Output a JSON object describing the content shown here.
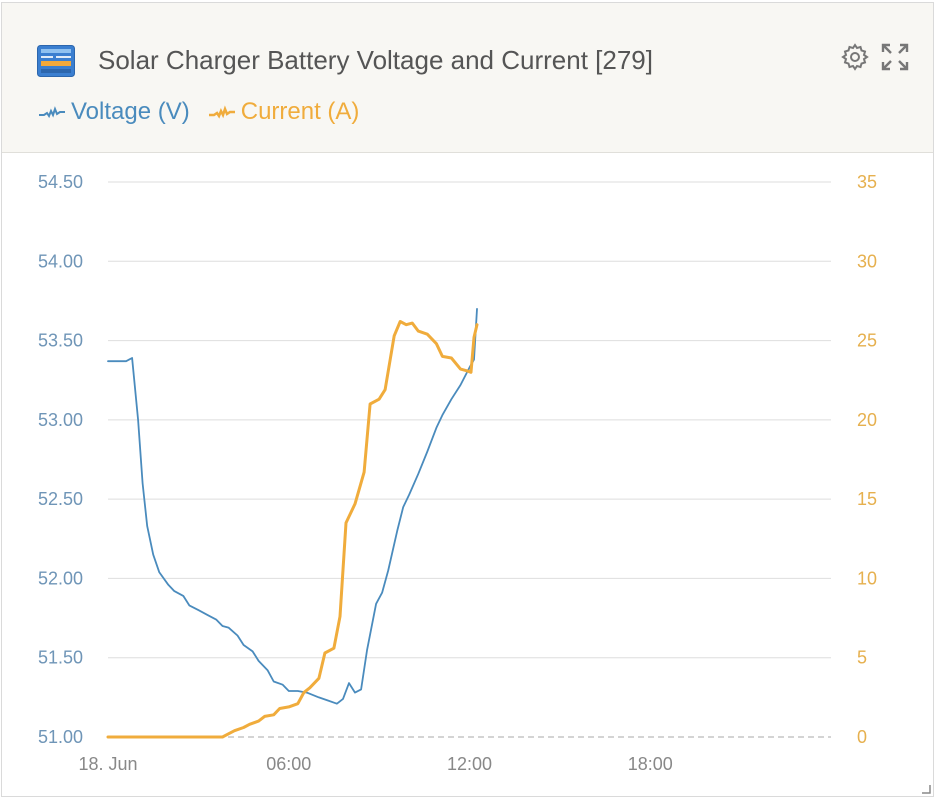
{
  "widget": {
    "title": "Solar Charger Battery Voltage and Current [279]",
    "icon": "solar-charger-device-icon",
    "actions": [
      {
        "name": "settings",
        "icon": "gear-icon"
      },
      {
        "name": "fullscreen",
        "icon": "expand-icon"
      }
    ]
  },
  "colors": {
    "voltage": "#4a8bbd",
    "current": "#f0ac3c",
    "header_bg": "#f8f7f3",
    "grid": "#dedede",
    "axis_text_left": "#6f95b7",
    "axis_text_right": "#e6b04e",
    "x_axis_text": "#888888",
    "zero_line": "#bbbbbb"
  },
  "legend": [
    {
      "label": "Voltage (V)",
      "color": "#4a8bbd"
    },
    {
      "label": "Current (A)",
      "color": "#f0ac3c"
    }
  ],
  "chart_data": {
    "type": "line",
    "title": "Solar Charger Battery Voltage and Current [279]",
    "xlabel": "",
    "x_tick_labels": [
      "18. Jun",
      "06:00",
      "12:00",
      "18:00"
    ],
    "x_tick_hours": [
      0,
      6,
      12,
      18
    ],
    "xlim_hours": [
      0,
      24
    ],
    "y_left": {
      "ylim": [
        51.0,
        54.5
      ],
      "ticks": [
        "51.00",
        "51.50",
        "52.00",
        "52.50",
        "53.00",
        "53.50",
        "54.00",
        "54.50"
      ]
    },
    "y_right": {
      "ylim": [
        0,
        35
      ],
      "ticks": [
        "0",
        "5",
        "10",
        "15",
        "20",
        "25",
        "30",
        "35"
      ]
    },
    "grid": true,
    "legend_position": "top-left",
    "series": [
      {
        "name": "Voltage (V)",
        "axis": "left",
        "points": [
          [
            0.0,
            53.37
          ],
          [
            0.4,
            53.37
          ],
          [
            0.6,
            53.37
          ],
          [
            0.7,
            53.38
          ],
          [
            0.8,
            53.39
          ],
          [
            1.0,
            53.0
          ],
          [
            1.15,
            52.6
          ],
          [
            1.3,
            52.33
          ],
          [
            1.5,
            52.15
          ],
          [
            1.7,
            52.04
          ],
          [
            2.0,
            51.96
          ],
          [
            2.2,
            51.92
          ],
          [
            2.5,
            51.89
          ],
          [
            2.7,
            51.83
          ],
          [
            3.0,
            51.8
          ],
          [
            3.3,
            51.77
          ],
          [
            3.6,
            51.74
          ],
          [
            3.8,
            51.7
          ],
          [
            4.0,
            51.69
          ],
          [
            4.3,
            51.64
          ],
          [
            4.5,
            51.58
          ],
          [
            4.8,
            51.54
          ],
          [
            5.0,
            51.48
          ],
          [
            5.3,
            51.42
          ],
          [
            5.5,
            51.35
          ],
          [
            5.8,
            51.33
          ],
          [
            6.0,
            51.29
          ],
          [
            6.3,
            51.29
          ],
          [
            6.6,
            51.28
          ],
          [
            7.0,
            51.25
          ],
          [
            7.3,
            51.23
          ],
          [
            7.6,
            51.21
          ],
          [
            7.8,
            51.24
          ],
          [
            8.0,
            51.34
          ],
          [
            8.2,
            51.28
          ],
          [
            8.4,
            51.3
          ],
          [
            8.6,
            51.55
          ],
          [
            8.9,
            51.84
          ],
          [
            9.1,
            51.91
          ],
          [
            9.3,
            52.05
          ],
          [
            9.6,
            52.3
          ],
          [
            9.8,
            52.45
          ],
          [
            10.0,
            52.53
          ],
          [
            10.3,
            52.66
          ],
          [
            10.6,
            52.8
          ],
          [
            10.9,
            52.95
          ],
          [
            11.1,
            53.03
          ],
          [
            11.4,
            53.13
          ],
          [
            11.7,
            53.22
          ],
          [
            12.0,
            53.33
          ],
          [
            12.15,
            53.38
          ],
          [
            12.25,
            53.7
          ]
        ]
      },
      {
        "name": "Current (A)",
        "axis": "right",
        "points": [
          [
            0.0,
            0.0
          ],
          [
            1.0,
            0.0
          ],
          [
            2.0,
            0.0
          ],
          [
            3.0,
            0.0
          ],
          [
            3.8,
            0.0
          ],
          [
            4.0,
            0.2
          ],
          [
            4.2,
            0.4
          ],
          [
            4.5,
            0.6
          ],
          [
            4.7,
            0.8
          ],
          [
            5.0,
            1.0
          ],
          [
            5.2,
            1.3
          ],
          [
            5.5,
            1.4
          ],
          [
            5.7,
            1.8
          ],
          [
            6.0,
            1.9
          ],
          [
            6.3,
            2.1
          ],
          [
            6.5,
            2.8
          ],
          [
            6.7,
            3.1
          ],
          [
            7.0,
            3.7
          ],
          [
            7.2,
            5.3
          ],
          [
            7.5,
            5.6
          ],
          [
            7.7,
            7.6
          ],
          [
            7.9,
            13.5
          ],
          [
            8.2,
            14.7
          ],
          [
            8.5,
            16.7
          ],
          [
            8.7,
            21.0
          ],
          [
            9.0,
            21.3
          ],
          [
            9.2,
            21.9
          ],
          [
            9.5,
            25.3
          ],
          [
            9.7,
            26.2
          ],
          [
            9.9,
            26.0
          ],
          [
            10.1,
            26.1
          ],
          [
            10.3,
            25.6
          ],
          [
            10.6,
            25.4
          ],
          [
            10.9,
            24.8
          ],
          [
            11.1,
            24.0
          ],
          [
            11.4,
            23.9
          ],
          [
            11.7,
            23.2
          ],
          [
            11.9,
            23.1
          ],
          [
            12.05,
            23.0
          ],
          [
            12.15,
            25.2
          ],
          [
            12.25,
            26.0
          ]
        ]
      }
    ]
  }
}
